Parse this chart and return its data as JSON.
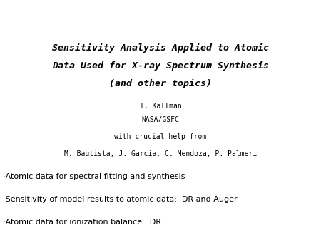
{
  "title_line1": "Sensitivity Analysis Applied to Atomic",
  "title_line2": "Data Used for X-ray Spectrum Synthesis",
  "title_line3": "(and other topics)",
  "author_line1": "T. Kallman",
  "author_line2": "NASA/GSFC",
  "help_line": "with crucial help from",
  "collaborators": "M. Bautista, J. Garcia, C. Mendoza, P. Palmeri",
  "bullets": [
    "Atomic data for spectral fitting and synthesis",
    "Sensitivity of model results to atomic data:  DR and Auger",
    "Atomic data for ionization balance:  DR"
  ],
  "background_color": "#ffffff",
  "text_color": "#000000",
  "title_fontsize": 9.5,
  "author_fontsize": 7.0,
  "bullet_fontsize": 8.0
}
